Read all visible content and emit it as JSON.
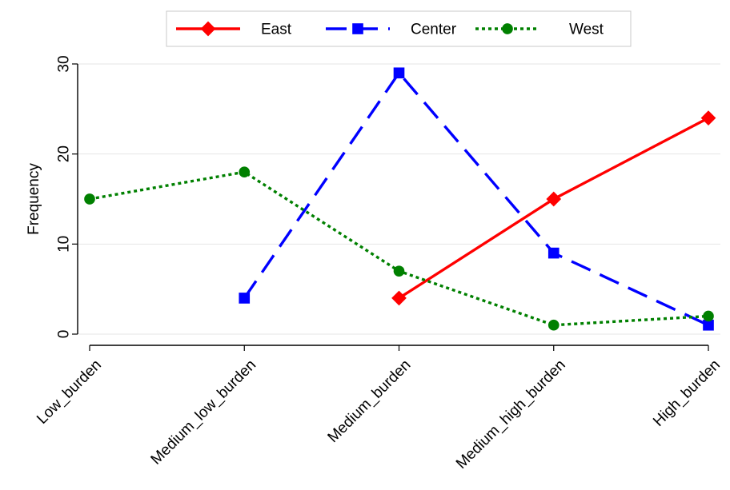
{
  "chart_data": {
    "type": "line",
    "categories": [
      "Low_burden",
      "Medium_low_burden",
      "Medium_burden",
      "Medium_high_burden",
      "High_burden"
    ],
    "ylabel": "Frequency",
    "xlabel": "",
    "ylim": [
      0,
      30
    ],
    "yticks": [
      0,
      10,
      20,
      30
    ],
    "grid": true,
    "legend_position": "top",
    "series": [
      {
        "name": "East",
        "color": "#ff0000",
        "marker": "diamond",
        "line_style": "solid",
        "values": [
          null,
          null,
          4,
          15,
          24
        ]
      },
      {
        "name": "Center",
        "color": "#0000ff",
        "marker": "square",
        "line_style": "dashed",
        "values": [
          null,
          4,
          29,
          9,
          1
        ]
      },
      {
        "name": "West",
        "color": "#008000",
        "marker": "circle",
        "line_style": "dotted",
        "values": [
          15,
          18,
          7,
          1,
          2
        ]
      }
    ]
  }
}
